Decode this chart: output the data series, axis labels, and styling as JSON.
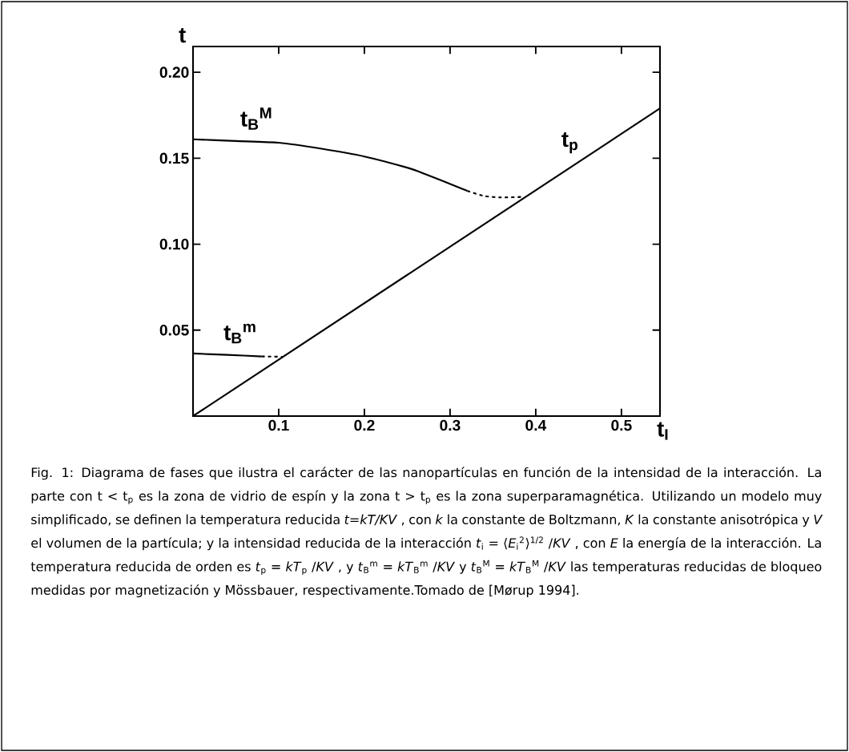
{
  "chart_data": {
    "type": "line",
    "xlabel": "t$_{I}$",
    "ylabel": "t",
    "xlim": [
      0,
      0.545
    ],
    "ylim": [
      0,
      0.215
    ],
    "xticks": [
      0.1,
      0.2,
      0.3,
      0.4,
      0.5
    ],
    "yticks": [
      0.05,
      {
        "value": 0.1,
        "label": "0.10"
      },
      0.15,
      {
        "value": 0.2,
        "label": "0.20"
      }
    ],
    "grid": false,
    "marker": "none",
    "series": [
      {
        "color": "#000000",
        "line_style": "solid",
        "x": [
          0,
          0.545
        ],
        "values": [
          0,
          0.179
        ]
      },
      {
        "color": "#000000",
        "line_style": "solid",
        "x": [
          0,
          0.05,
          0.1,
          0.15,
          0.2,
          0.25,
          0.27,
          0.31,
          0.32
        ],
        "values": [
          0.161,
          0.16,
          0.159,
          0.1555,
          0.151,
          0.1445,
          0.141,
          0.133,
          0.131
        ]
      },
      {
        "color": "#000000",
        "line_style": "dashed",
        "x": [
          0.32,
          0.34,
          0.36,
          0.385
        ],
        "values": [
          0.131,
          0.128,
          0.1272,
          0.1275
        ]
      },
      {
        "color": "#000000",
        "line_style": "solid",
        "x": [
          0,
          0.04,
          0.08
        ],
        "values": [
          0.0364,
          0.0356,
          0.0347
        ]
      },
      {
        "color": "#000000",
        "line_style": "dashed",
        "x": [
          0.08,
          0.105
        ],
        "values": [
          0.0347,
          0.0345
        ]
      }
    ],
    "annotations": [
      "t$_{p}$",
      "t$_{B}$$^{M}$",
      "t$_{B}$$^{m}$",
      "Fig. 1: Diagrama de fases que ilustra el carácter de las nanopartículas en función de la intensidad de la interacción. La parte con t < t$_{p}$ es la zona de vidrio de espín y la zona t > t$_{p}$ es la zona superparamagnética. Utilizando un modelo muy simplificado, se definen la temperatura reducida *t=kT/KV* , con *k* la constante de Boltzmann, *K* la constante anisotrópica y *V* el volumen de la partícula; y la intensidad reducida de la interacción *t*$_{i}$ = ⟨*E*$_{i}$$^{2}$⟩$^{1/2}$ /*KV* , con *E* la energía de la interacción. La temperatura reducida de orden es *t*$_{p}$ = *kT*$_{p}$ /*KV* , y *t*$_{B}$$^{m}$ = *kT*$_{B}$$^{m}$ /*KV* y *t*$_{B}$$^{M}$ = *kT*$_{B}$$^{M}$ /*KV* las temperaturas reducidas de bloqueo medidas por magnetización y Mössbauer, respectivamente.Tomado de [Mørup 1994]."
    ]
  }
}
